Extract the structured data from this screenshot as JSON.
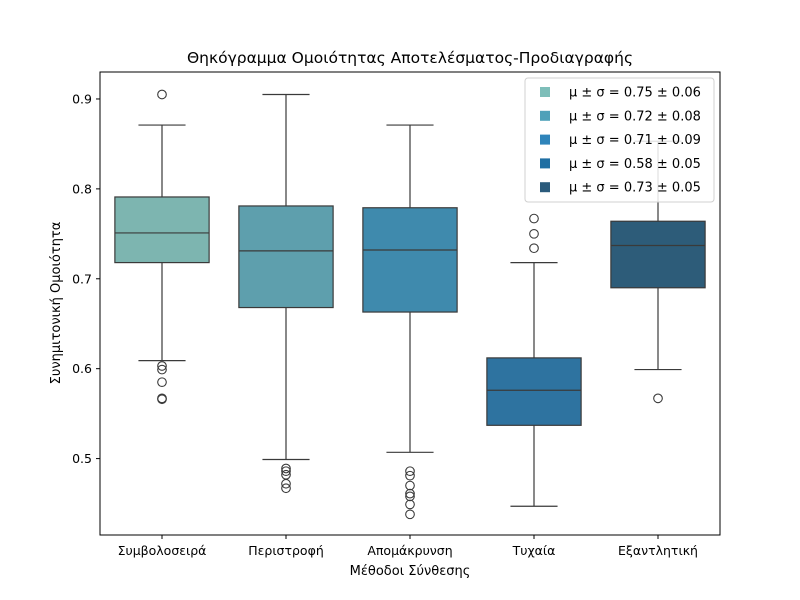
{
  "chart_data": {
    "type": "boxplot",
    "title": "Θηκόγραμμα Ομοιότητας Αποτελέσματος-Προδιαγραφής",
    "xlabel": "Μέθοδοι Σύνθεσης",
    "ylabel": "Συνημιτονική Ομοιότητα",
    "ylim": [
      0.415,
      0.93
    ],
    "yticks": [
      0.5,
      0.6,
      0.7,
      0.8,
      0.9
    ],
    "ytick_labels": [
      "0.5",
      "0.6",
      "0.7",
      "0.8",
      "0.9"
    ],
    "grid": false,
    "legend_position": "top-right",
    "categories": [
      "Συμβολοσειρά",
      "Περιστροφή",
      "Απομάκρυνση",
      "Τυχαία",
      "Εξαντλητική"
    ],
    "series": [
      {
        "name": "Συμβολοσειρά",
        "color": "#7db5b0",
        "whisker_low": 0.609,
        "q1": 0.718,
        "median": 0.751,
        "q3": 0.791,
        "whisker_high": 0.871,
        "outliers": [
          0.905,
          0.603,
          0.599,
          0.585,
          0.567,
          0.566
        ]
      },
      {
        "name": "Περιστροφή",
        "color": "#5e9fad",
        "whisker_low": 0.499,
        "q1": 0.668,
        "median": 0.731,
        "q3": 0.781,
        "whisker_high": 0.905,
        "outliers": [
          0.489,
          0.486,
          0.482,
          0.472,
          0.467
        ]
      },
      {
        "name": "Απομάκρυνση",
        "color": "#3f8aad",
        "whisker_low": 0.507,
        "q1": 0.663,
        "median": 0.732,
        "q3": 0.779,
        "whisker_high": 0.871,
        "outliers": [
          0.486,
          0.481,
          0.47,
          0.461,
          0.458,
          0.449,
          0.438
        ]
      },
      {
        "name": "Τυχαία",
        "color": "#2e73a0",
        "whisker_low": 0.447,
        "q1": 0.537,
        "median": 0.576,
        "q3": 0.612,
        "whisker_high": 0.718,
        "outliers": [
          0.767,
          0.75,
          0.734
        ]
      },
      {
        "name": "Εξαντλητική",
        "color": "#2d5c79",
        "whisker_low": 0.599,
        "q1": 0.69,
        "median": 0.737,
        "q3": 0.764,
        "whisker_high": 0.853,
        "outliers": [
          0.567
        ]
      }
    ],
    "legend": [
      {
        "label": "μ ± σ = 0.75 ± 0.06",
        "color": "#7ebeb9"
      },
      {
        "label": "μ ± σ = 0.72 ± 0.08",
        "color": "#4fa1b9"
      },
      {
        "label": "μ ± σ = 0.71 ± 0.09",
        "color": "#2f84ba"
      },
      {
        "label": "μ ± σ = 0.58 ± 0.05",
        "color": "#1f6fa3"
      },
      {
        "label": "μ ± σ = 0.73 ± 0.05",
        "color": "#2b5b7c"
      }
    ]
  }
}
